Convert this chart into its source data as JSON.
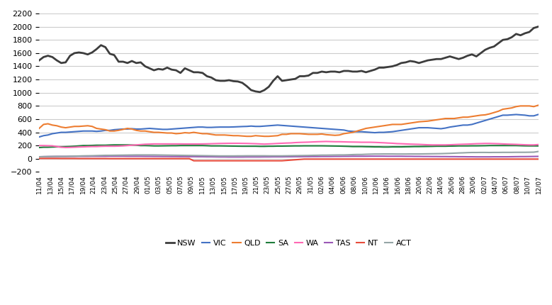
{
  "title": "",
  "ylim": [
    -200,
    2200
  ],
  "yticks": [
    -200,
    0,
    200,
    400,
    600,
    800,
    1000,
    1200,
    1400,
    1600,
    1800,
    2000,
    2200
  ],
  "series": {
    "NSW": {
      "color": "#3d3d3d",
      "linewidth": 2.0,
      "values": [
        1490,
        1540,
        1560,
        1540,
        1490,
        1450,
        1460,
        1560,
        1600,
        1610,
        1600,
        1580,
        1610,
        1660,
        1720,
        1690,
        1590,
        1570,
        1470,
        1470,
        1450,
        1480,
        1450,
        1460,
        1400,
        1370,
        1340,
        1360,
        1350,
        1380,
        1350,
        1340,
        1300,
        1370,
        1340,
        1310,
        1310,
        1300,
        1250,
        1230,
        1190,
        1180,
        1180,
        1190,
        1175,
        1170,
        1150,
        1100,
        1040,
        1020,
        1010,
        1040,
        1090,
        1180,
        1250,
        1180,
        1190,
        1200,
        1210,
        1250,
        1250,
        1260,
        1300,
        1300,
        1320,
        1310,
        1320,
        1320,
        1310,
        1330,
        1330,
        1320,
        1320,
        1330,
        1310,
        1330,
        1350,
        1380,
        1380,
        1390,
        1400,
        1420,
        1450,
        1460,
        1480,
        1470,
        1450,
        1470,
        1490,
        1500,
        1510,
        1510,
        1530,
        1550,
        1530,
        1510,
        1530,
        1560,
        1580,
        1550,
        1600,
        1650,
        1680,
        1700,
        1750,
        1800,
        1810,
        1840,
        1890,
        1870,
        1900,
        1920,
        1980,
        2000
      ]
    },
    "VIC": {
      "color": "#4472c4",
      "linewidth": 1.5,
      "values": [
        330,
        350,
        360,
        380,
        390,
        400,
        400,
        405,
        410,
        415,
        420,
        420,
        420,
        415,
        420,
        430,
        430,
        440,
        445,
        450,
        450,
        455,
        450,
        450,
        455,
        460,
        455,
        450,
        445,
        445,
        450,
        455,
        460,
        465,
        470,
        475,
        480,
        480,
        475,
        475,
        478,
        480,
        480,
        480,
        482,
        485,
        488,
        490,
        495,
        490,
        490,
        495,
        500,
        505,
        510,
        505,
        500,
        495,
        490,
        485,
        480,
        475,
        470,
        465,
        460,
        455,
        450,
        445,
        440,
        435,
        420,
        415,
        410,
        410,
        405,
        400,
        395,
        400,
        400,
        405,
        410,
        420,
        430,
        440,
        450,
        460,
        470,
        470,
        470,
        465,
        460,
        455,
        465,
        480,
        490,
        500,
        510,
        510,
        520,
        540,
        560,
        580,
        600,
        620,
        640,
        660,
        660,
        665,
        670,
        665,
        660,
        650,
        650,
        670
      ]
    },
    "QLD": {
      "color": "#ed7d31",
      "linewidth": 1.5,
      "values": [
        460,
        520,
        530,
        510,
        500,
        480,
        470,
        480,
        490,
        490,
        495,
        500,
        490,
        460,
        450,
        440,
        420,
        420,
        430,
        445,
        460,
        450,
        430,
        420,
        420,
        410,
        400,
        400,
        395,
        390,
        390,
        380,
        385,
        395,
        390,
        400,
        390,
        380,
        380,
        370,
        360,
        360,
        360,
        355,
        350,
        350,
        345,
        340,
        340,
        350,
        345,
        340,
        340,
        345,
        350,
        370,
        370,
        380,
        380,
        380,
        375,
        370,
        370,
        370,
        375,
        365,
        360,
        355,
        360,
        380,
        390,
        400,
        420,
        440,
        460,
        470,
        480,
        490,
        500,
        510,
        520,
        520,
        520,
        530,
        540,
        550,
        560,
        565,
        570,
        580,
        590,
        600,
        610,
        610,
        610,
        620,
        630,
        630,
        640,
        650,
        660,
        665,
        680,
        700,
        720,
        750,
        760,
        770,
        790,
        800,
        800,
        800,
        790,
        810
      ]
    },
    "SA": {
      "color": "#1f7d3c",
      "linewidth": 1.5,
      "values": [
        170,
        175,
        175,
        178,
        180,
        180,
        182,
        185,
        190,
        195,
        200,
        200,
        202,
        205,
        205,
        205,
        208,
        210,
        210,
        210,
        210,
        208,
        205,
        200,
        200,
        198,
        195,
        195,
        196,
        197,
        198,
        198,
        200,
        200,
        200,
        200,
        200,
        200,
        198,
        195,
        195,
        195,
        194,
        193,
        192,
        191,
        190,
        190,
        190,
        190,
        188,
        188,
        190,
        190,
        192,
        192,
        193,
        194,
        195,
        195,
        196,
        196,
        196,
        196,
        196,
        195,
        194,
        193,
        192,
        190,
        188,
        185,
        185,
        185,
        183,
        182,
        180,
        180,
        178,
        178,
        180,
        180,
        180,
        182,
        183,
        185,
        185,
        186,
        187,
        188,
        190,
        190,
        190,
        192,
        193,
        195,
        195,
        195,
        196,
        196,
        197,
        198,
        200,
        200,
        200,
        200,
        200,
        200,
        200,
        198,
        196,
        195,
        195,
        195
      ]
    },
    "WA": {
      "color": "#ff69b4",
      "linewidth": 1.5,
      "values": [
        200,
        200,
        198,
        196,
        185,
        175,
        170,
        172,
        175,
        178,
        180,
        183,
        185,
        185,
        188,
        190,
        190,
        190,
        192,
        195,
        200,
        205,
        210,
        215,
        220,
        222,
        225,
        225,
        225,
        225,
        225,
        225,
        225,
        224,
        224,
        224,
        224,
        225,
        226,
        228,
        230,
        232,
        233,
        234,
        234,
        234,
        233,
        232,
        230,
        228,
        225,
        222,
        225,
        228,
        232,
        235,
        238,
        240,
        245,
        248,
        250,
        252,
        255,
        258,
        260,
        262,
        260,
        258,
        258,
        256,
        254,
        253,
        252,
        250,
        250,
        250,
        248,
        245,
        242,
        238,
        235,
        230,
        228,
        225,
        222,
        220,
        218,
        215,
        212,
        210,
        210,
        210,
        210,
        212,
        215,
        218,
        220,
        222,
        225,
        228,
        230,
        232,
        232,
        230,
        228,
        225,
        222,
        220,
        218,
        215,
        212,
        210,
        210,
        215
      ]
    },
    "TAS": {
      "color": "#9b59b6",
      "linewidth": 1.5,
      "values": [
        30,
        32,
        33,
        34,
        35,
        35,
        35,
        36,
        36,
        37,
        37,
        37,
        38,
        38,
        38,
        38,
        39,
        39,
        39,
        39,
        38,
        38,
        38,
        38,
        37,
        37,
        36,
        36,
        35,
        35,
        34,
        34,
        33,
        33,
        32,
        32,
        31,
        31,
        30,
        30,
        29,
        28,
        28,
        27,
        27,
        27,
        27,
        28,
        28,
        28,
        28,
        29,
        29,
        30,
        30,
        30,
        31,
        31,
        32,
        32,
        33,
        33,
        34,
        34,
        35,
        35,
        35,
        36,
        36,
        37,
        37,
        38,
        38,
        38,
        38,
        39,
        39,
        39,
        39,
        38,
        38,
        38,
        38,
        37,
        37,
        36,
        36,
        35,
        35,
        34,
        34,
        33,
        33,
        32,
        32,
        31,
        31,
        30,
        30,
        29,
        29,
        29,
        29,
        30,
        30,
        30,
        30,
        31,
        32,
        33,
        33,
        34,
        35,
        36
      ]
    },
    "NT": {
      "color": "#e74c3c",
      "linewidth": 1.5,
      "values": [
        5,
        5,
        5,
        5,
        5,
        4,
        4,
        4,
        4,
        3,
        3,
        3,
        3,
        3,
        3,
        3,
        2,
        2,
        2,
        2,
        2,
        2,
        2,
        2,
        2,
        2,
        2,
        2,
        2,
        2,
        2,
        2,
        2,
        2,
        2,
        -30,
        -30,
        -30,
        -30,
        -30,
        -30,
        -30,
        -30,
        -30,
        -30,
        -30,
        -30,
        -30,
        -30,
        -30,
        -30,
        -30,
        -30,
        -30,
        -30,
        -30,
        -25,
        -20,
        -15,
        -10,
        -5,
        -5,
        -5,
        -5,
        -5,
        -5,
        -5,
        -5,
        -5,
        -5,
        -5,
        -5,
        -5,
        -5,
        -5,
        -5,
        -5,
        -5,
        -5,
        -5,
        -5,
        -5,
        -5,
        -5,
        -5,
        -5,
        -5,
        -5,
        -5,
        -5,
        -5,
        -5,
        -5,
        -5,
        -5,
        -5,
        -5,
        -5,
        -5,
        -5,
        -5,
        -5,
        -5,
        -5,
        -5,
        -5,
        -5,
        -5,
        -5,
        -5,
        -5,
        -5,
        -5,
        -5
      ]
    },
    "ACT": {
      "color": "#95a5a6",
      "linewidth": 1.5,
      "values": [
        30,
        32,
        34,
        35,
        36,
        36,
        36,
        38,
        40,
        42,
        44,
        45,
        46,
        48,
        50,
        52,
        52,
        53,
        54,
        55,
        56,
        57,
        58,
        58,
        58,
        58,
        58,
        57,
        56,
        55,
        54,
        53,
        52,
        51,
        50,
        49,
        48,
        47,
        46,
        45,
        44,
        43,
        43,
        43,
        43,
        44,
        44,
        45,
        45,
        45,
        45,
        45,
        44,
        44,
        44,
        44,
        45,
        46,
        47,
        48,
        49,
        50,
        52,
        53,
        55,
        55,
        56,
        57,
        58,
        58,
        60,
        63,
        65,
        65,
        68,
        70,
        72,
        72,
        73,
        73,
        73,
        72,
        72,
        72,
        73,
        73,
        73,
        74,
        75,
        76,
        77,
        78,
        80,
        82,
        85,
        88,
        90,
        93,
        95,
        95,
        96,
        96,
        95,
        96,
        96,
        97,
        97,
        97,
        98,
        98,
        98,
        99,
        100,
        110
      ]
    }
  },
  "x_labels": [
    "11/04",
    "13/04",
    "15/04",
    "17/04",
    "19/04",
    "21/04",
    "23/04",
    "25/04",
    "27/04",
    "29/04",
    "01/05",
    "03/05",
    "05/05",
    "07/05",
    "09/05",
    "11/05",
    "13/05",
    "15/05",
    "17/05",
    "19/05",
    "21/05",
    "23/05",
    "25/05",
    "27/05",
    "29/05",
    "31/05",
    "02/06",
    "04/06",
    "06/06",
    "08/06",
    "10/06",
    "12/06",
    "14/06",
    "16/06",
    "18/06",
    "20/06",
    "22/06",
    "24/06",
    "26/06",
    "28/06",
    "30/06",
    "02/07",
    "04/07",
    "06/07",
    "08/07",
    "10/07",
    "12/07"
  ],
  "legend_order": [
    "NSW",
    "VIC",
    "QLD",
    "SA",
    "WA",
    "TAS",
    "NT",
    "ACT"
  ],
  "background_color": "#ffffff",
  "grid_color": "#cccccc"
}
